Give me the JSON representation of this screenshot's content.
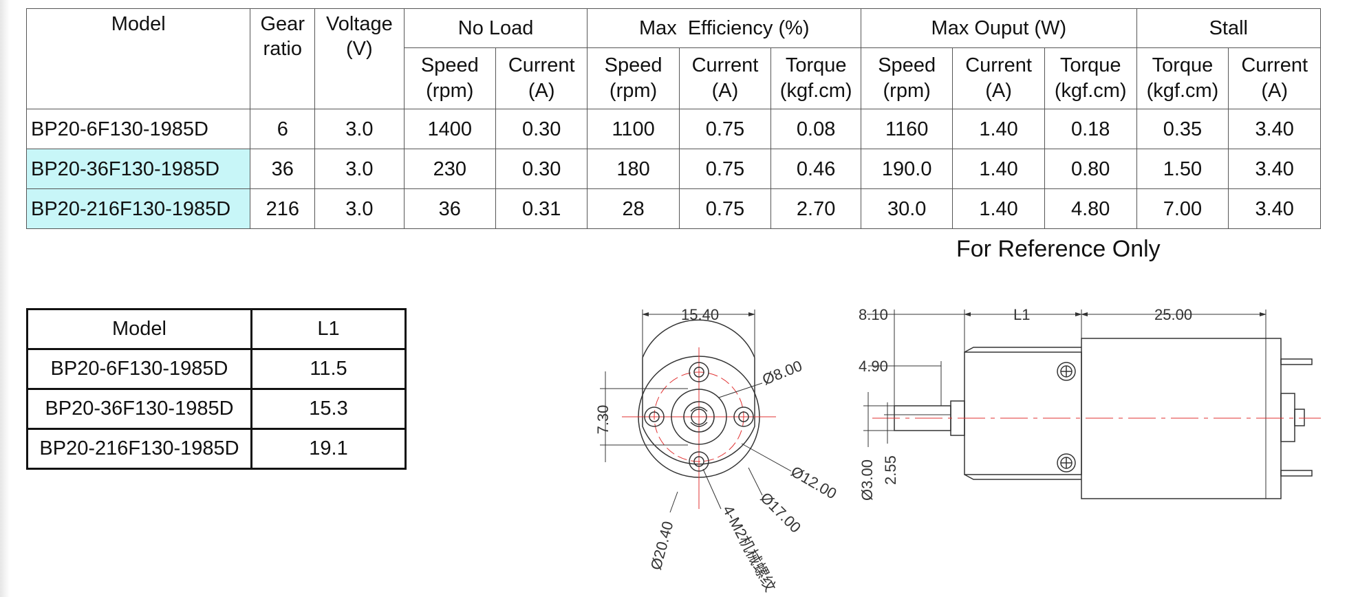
{
  "spec_table": {
    "headers": {
      "model": "Model",
      "gear_ratio": "Gear ratio",
      "voltage": "Voltage (V)",
      "no_load": "No Load",
      "max_efficiency": "Max  Efficiency (%)",
      "max_output": "Max Ouput (W)",
      "stall": "Stall",
      "speed": "Speed (rpm)",
      "current": "Current (A)",
      "torque": "Torque (kgf.cm)"
    },
    "rows": [
      [
        "BP20-6F130-1985D",
        "6",
        "3.0",
        "1400",
        "0.30",
        "1100",
        "0.75",
        "0.08",
        "1160",
        "1.40",
        "0.18",
        "0.35",
        "3.40"
      ],
      [
        "BP20-36F130-1985D",
        "36",
        "3.0",
        "230",
        "0.30",
        "180",
        "0.75",
        "0.46",
        "190.0",
        "1.40",
        "0.80",
        "1.50",
        "3.40"
      ],
      [
        "BP20-216F130-1985D",
        "216",
        "3.0",
        "36",
        "0.31",
        "28",
        "0.75",
        "2.70",
        "30.0",
        "1.40",
        "4.80",
        "7.00",
        "3.40"
      ]
    ]
  },
  "reference_note": "For Reference Only",
  "l1_table": {
    "headers": [
      "Model",
      "L1"
    ],
    "rows": [
      [
        "BP20-6F130-1985D",
        "11.5"
      ],
      [
        "BP20-36F130-1985D",
        "15.3"
      ],
      [
        "BP20-216F130-1985D",
        "19.1"
      ]
    ]
  },
  "front_view": {
    "dim_width": "15.40",
    "dim_height": "7.30",
    "dia_8": "Ø8.00",
    "dia_12": "Ø12.00",
    "dia_17": "Ø17.00",
    "dia_20": "Ø20.40",
    "screw_note": "4-M2机械螺纹"
  },
  "side_view": {
    "dim_shaft": "8.10",
    "dim_l1": "L1",
    "dim_body": "25.00",
    "dim_flat": "4.90",
    "dim_dia": "Ø3.00",
    "dim_flat_h": "2.55"
  },
  "colors": {
    "highlight": "#c8f6f8",
    "centerline": "#e03030",
    "line": "#333333"
  }
}
